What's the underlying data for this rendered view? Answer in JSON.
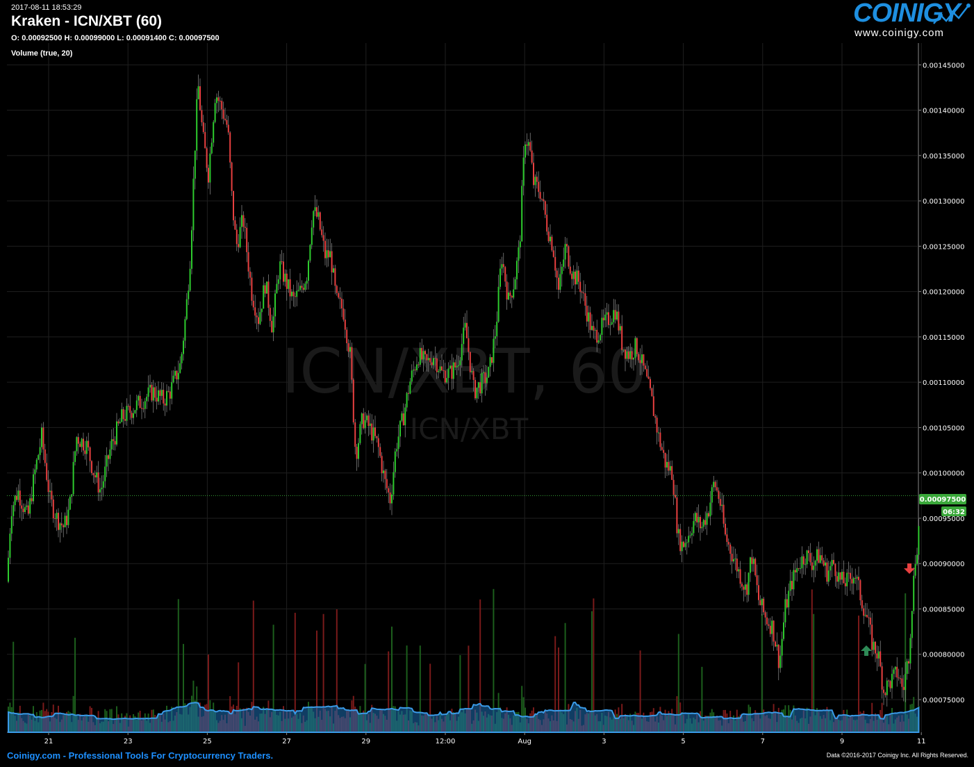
{
  "header": {
    "timestamp": "2017-08-11 18:53:29",
    "title": "Kraken - ICN/XBT (60)",
    "ohlc": "O: 0.00092500 H: 0.00099000 L: 0.00091400 C: 0.00097500",
    "volume_label": "Volume (true, 20)"
  },
  "logo": {
    "wordmark": "COINIGY",
    "url": "www.coinigy.com"
  },
  "watermark": {
    "pair_big": "ICN/XBT, 60",
    "pair_small": "ICN/XBT"
  },
  "footer": {
    "left": "Coinigy.com - Professional Tools For Cryptocurrency Traders.",
    "right": "Data ©2016-2017 Coinigy Inc. All Rights Reserved."
  },
  "colors": {
    "up": "#2ecc2e",
    "down": "#e84040",
    "volume_area": "#1e6fb5",
    "price_tag": "#3aa83a",
    "background": "#000000"
  },
  "price_tag": {
    "value": "0.00097500",
    "countdown": "06:32"
  },
  "chart_data": {
    "type": "candlestick",
    "exchange": "Kraken",
    "pair": "ICN/XBT",
    "interval": "60",
    "x_ticks": [
      "21",
      "23",
      "25",
      "27",
      "29",
      "12:00",
      "Aug",
      "3",
      "5",
      "7",
      "9",
      "11"
    ],
    "y_ticks": [
      "0.00075000",
      "0.00080000",
      "0.00085000",
      "0.00090000",
      "0.00095000",
      "0.00100000",
      "0.00105000",
      "0.00110000",
      "0.00115000",
      "0.00120000",
      "0.00125000",
      "0.00130000",
      "0.00135000",
      "0.00140000",
      "0.00145000"
    ],
    "y_range": [
      0.000714,
      0.001474
    ],
    "grid": true,
    "last_close": 0.000975,
    "price_path": [
      [
        0,
        0.00088
      ],
      [
        6,
        0.00096
      ],
      [
        16,
        0.00098
      ],
      [
        30,
        0.00095
      ],
      [
        40,
        0.001
      ],
      [
        50,
        0.00104
      ],
      [
        62,
        0.00097
      ],
      [
        72,
        0.00095
      ],
      [
        82,
        0.00094
      ],
      [
        90,
        0.00096
      ],
      [
        100,
        0.00104
      ],
      [
        115,
        0.00103
      ],
      [
        125,
        0.001
      ],
      [
        135,
        0.00098
      ],
      [
        150,
        0.00103
      ],
      [
        165,
        0.00106
      ],
      [
        180,
        0.00107
      ],
      [
        195,
        0.00108
      ],
      [
        210,
        0.00109
      ],
      [
        225,
        0.00108
      ],
      [
        235,
        0.00109
      ],
      [
        250,
        0.00112
      ],
      [
        258,
        0.00118
      ],
      [
        264,
        0.00124
      ],
      [
        270,
        0.00135
      ],
      [
        275,
        0.00143
      ],
      [
        282,
        0.00137
      ],
      [
        290,
        0.00133
      ],
      [
        300,
        0.00142
      ],
      [
        310,
        0.0014
      ],
      [
        318,
        0.00138
      ],
      [
        324,
        0.0013
      ],
      [
        330,
        0.00125
      ],
      [
        340,
        0.00128
      ],
      [
        352,
        0.0012
      ],
      [
        362,
        0.00117
      ],
      [
        372,
        0.00121
      ],
      [
        382,
        0.00116
      ],
      [
        392,
        0.00123
      ],
      [
        402,
        0.00121
      ],
      [
        412,
        0.00119
      ],
      [
        422,
        0.0012
      ],
      [
        432,
        0.00122
      ],
      [
        440,
        0.00129
      ],
      [
        448,
        0.00128
      ],
      [
        458,
        0.00124
      ],
      [
        466,
        0.00124
      ],
      [
        474,
        0.00119
      ],
      [
        484,
        0.00118
      ],
      [
        494,
        0.00113
      ],
      [
        502,
        0.00102
      ],
      [
        512,
        0.00106
      ],
      [
        522,
        0.00105
      ],
      [
        534,
        0.00103
      ],
      [
        544,
        0.00099
      ],
      [
        552,
        0.00097
      ],
      [
        560,
        0.00103
      ],
      [
        570,
        0.00106
      ],
      [
        580,
        0.0011
      ],
      [
        592,
        0.00113
      ],
      [
        604,
        0.00112
      ],
      [
        614,
        0.00113
      ],
      [
        626,
        0.00111
      ],
      [
        638,
        0.00111
      ],
      [
        648,
        0.00112
      ],
      [
        660,
        0.00116
      ],
      [
        672,
        0.00109
      ],
      [
        684,
        0.0011
      ],
      [
        694,
        0.00111
      ],
      [
        704,
        0.00116
      ],
      [
        712,
        0.00124
      ],
      [
        722,
        0.00119
      ],
      [
        730,
        0.00121
      ],
      [
        738,
        0.00125
      ],
      [
        742,
        0.00132
      ],
      [
        746,
        0.00137
      ],
      [
        752,
        0.00136
      ],
      [
        758,
        0.00132
      ],
      [
        768,
        0.00131
      ],
      [
        778,
        0.00127
      ],
      [
        786,
        0.00125
      ],
      [
        794,
        0.0012
      ],
      [
        804,
        0.00125
      ],
      [
        814,
        0.00122
      ],
      [
        824,
        0.00121
      ],
      [
        834,
        0.00118
      ],
      [
        844,
        0.00115
      ],
      [
        856,
        0.00116
      ],
      [
        866,
        0.00117
      ],
      [
        876,
        0.00118
      ],
      [
        886,
        0.00114
      ],
      [
        896,
        0.00113
      ],
      [
        906,
        0.00114
      ],
      [
        918,
        0.00111
      ],
      [
        928,
        0.00108
      ],
      [
        938,
        0.00104
      ],
      [
        948,
        0.00101
      ],
      [
        958,
        0.001
      ],
      [
        966,
        0.00093
      ],
      [
        972,
        0.00092
      ],
      [
        980,
        0.00093
      ],
      [
        990,
        0.00095
      ],
      [
        1000,
        0.00094
      ],
      [
        1010,
        0.00096
      ],
      [
        1018,
        0.00099
      ],
      [
        1026,
        0.00097
      ],
      [
        1034,
        0.00093
      ],
      [
        1044,
        0.00091
      ],
      [
        1054,
        0.00089
      ],
      [
        1064,
        0.00087
      ],
      [
        1072,
        0.00091
      ],
      [
        1082,
        0.00086
      ],
      [
        1092,
        0.00084
      ],
      [
        1102,
        0.00083
      ],
      [
        1112,
        0.00079
      ],
      [
        1120,
        0.00085
      ],
      [
        1130,
        0.00088
      ],
      [
        1140,
        0.0009
      ],
      [
        1150,
        0.00091
      ],
      [
        1160,
        0.0009
      ],
      [
        1170,
        0.00091
      ],
      [
        1180,
        0.00089
      ],
      [
        1190,
        0.0009
      ],
      [
        1200,
        0.00088
      ],
      [
        1210,
        0.00088
      ],
      [
        1220,
        0.00089
      ],
      [
        1230,
        0.00086
      ],
      [
        1238,
        0.00084
      ],
      [
        1246,
        0.00081
      ],
      [
        1254,
        0.0008
      ],
      [
        1262,
        0.00076
      ],
      [
        1272,
        0.00077
      ],
      [
        1282,
        0.00078
      ],
      [
        1290,
        0.00076
      ],
      [
        1298,
        0.0008
      ],
      [
        1304,
        0.00087
      ],
      [
        1308,
        0.00091
      ],
      [
        1312,
        0.00093
      ],
      [
        1314,
        0.000975
      ]
    ]
  }
}
